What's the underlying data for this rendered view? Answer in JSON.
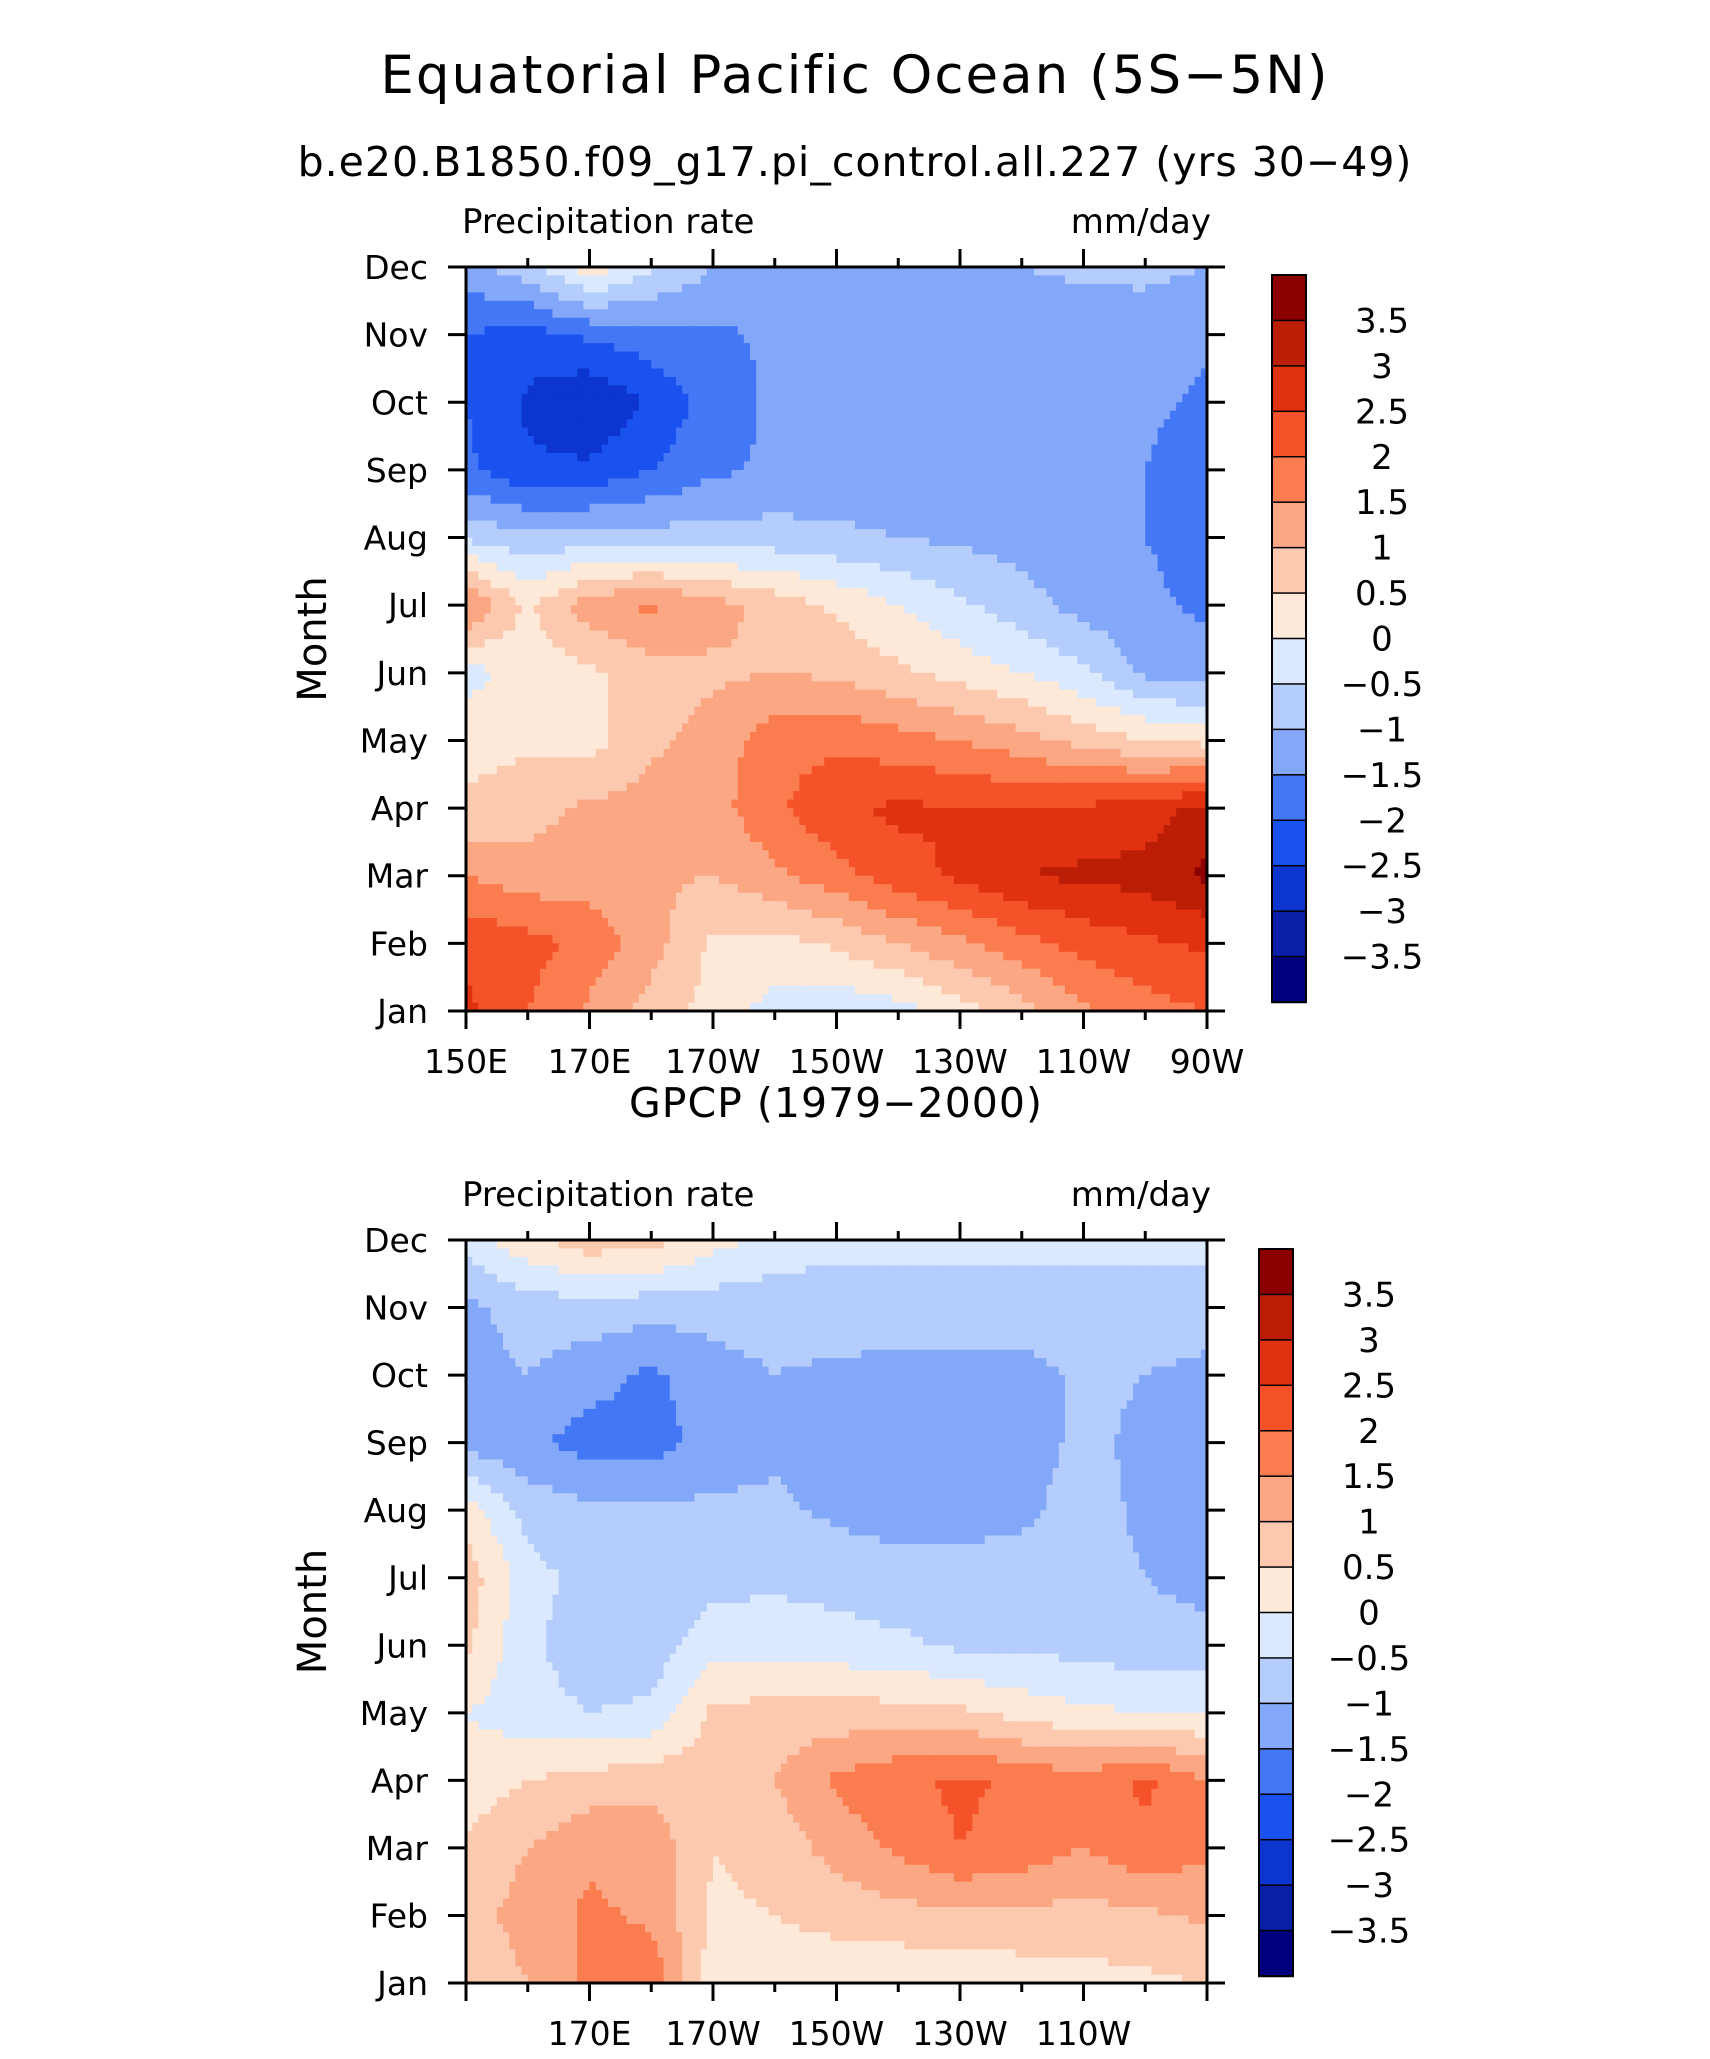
{
  "figure": {
    "title": "Equatorial Pacific Ocean (5S−5N)",
    "subtitle": "b.e20.B1850.f09_g17.pi_control.all.227 (yrs 30−49)"
  },
  "chart_data": [
    {
      "type": "heatmap",
      "title": "",
      "left_label": "Precipitation rate",
      "right_label": "mm/day",
      "xlabel": "",
      "ylabel": "Month",
      "x_range": [
        150,
        270
      ],
      "x_unit": "degrees east",
      "x_ticks": [
        150,
        170,
        190,
        210,
        230,
        250,
        270
      ],
      "x_tick_labels": [
        "150E",
        "170E",
        "170W",
        "150W",
        "130W",
        "110W",
        "90W"
      ],
      "y_tick_labels": [
        "Jan",
        "Feb",
        "Mar",
        "Apr",
        "May",
        "Jun",
        "Jul",
        "Aug",
        "Sep",
        "Oct",
        "Nov",
        "Dec"
      ],
      "colorbar": {
        "levels": [
          -3.5,
          -3,
          -2.5,
          -2,
          -1.5,
          -1,
          -0.5,
          0,
          0.5,
          1,
          1.5,
          2,
          2.5,
          3,
          3.5
        ],
        "labels": [
          "3.5",
          "3",
          "2.5",
          "2",
          "1.5",
          "1",
          "0.5",
          "0",
          "−0.5",
          "−1",
          "−1.5",
          "−2",
          "−2.5",
          "−3",
          "−3.5"
        ],
        "colors": [
          "#00007f",
          "#0a1fa8",
          "#0d36d1",
          "#1a52ef",
          "#4477f5",
          "#84a8f9",
          "#b4cdfc",
          "#dbe9fe",
          "#fee8d8",
          "#fdc9ae",
          "#fca784",
          "#fb7c4f",
          "#f5522a",
          "#e03210",
          "#bc1d05",
          "#8c0000"
        ]
      },
      "x": [
        150,
        160,
        170,
        180,
        190,
        200,
        210,
        220,
        230,
        240,
        250,
        260,
        270
      ],
      "months": [
        "Jan",
        "Feb",
        "Mar",
        "Apr",
        "May",
        "Jun",
        "Jul",
        "Aug",
        "Sep",
        "Oct",
        "Nov",
        "Dec"
      ],
      "z": [
        [
          2.6,
          2.0,
          1.4,
          0.8,
          0.3,
          -0.2,
          -0.4,
          -0.2,
          0.3,
          0.8,
          1.4,
          1.8,
          2.0
        ],
        [
          2.4,
          2.2,
          1.8,
          1.2,
          0.4,
          0.3,
          0.6,
          1.0,
          1.4,
          1.8,
          2.2,
          2.4,
          2.6
        ],
        [
          1.5,
          1.2,
          1.3,
          1.1,
          1.0,
          1.4,
          1.8,
          2.3,
          2.6,
          3.0,
          3.1,
          3.2,
          3.6
        ],
        [
          0.6,
          0.8,
          1.1,
          1.2,
          1.3,
          1.9,
          2.4,
          2.6,
          2.5,
          2.5,
          2.6,
          2.7,
          3.2
        ],
        [
          0.3,
          0.4,
          0.3,
          0.9,
          1.2,
          1.8,
          1.9,
          1.7,
          1.5,
          1.2,
          0.8,
          0.5,
          0.3
        ],
        [
          -0.2,
          0.2,
          0.4,
          0.8,
          0.9,
          1.0,
          0.9,
          0.6,
          0.3,
          0.0,
          -0.4,
          -1.1,
          -1.3
        ],
        [
          1.6,
          0.4,
          1.3,
          1.6,
          1.2,
          0.8,
          0.4,
          0.0,
          -0.4,
          -0.8,
          -1.2,
          -1.4,
          -1.6
        ],
        [
          -0.6,
          -0.9,
          -0.8,
          -0.8,
          -0.8,
          -0.8,
          -0.9,
          -1.0,
          -1.1,
          -1.2,
          -1.3,
          -1.5,
          -1.7
        ],
        [
          -1.9,
          -2.4,
          -2.4,
          -2.0,
          -1.6,
          -1.4,
          -1.3,
          -1.3,
          -1.3,
          -1.3,
          -1.4,
          -1.5,
          -1.8
        ],
        [
          -2.0,
          -2.6,
          -3.0,
          -2.4,
          -1.8,
          -1.4,
          -1.3,
          -1.3,
          -1.3,
          -1.3,
          -1.3,
          -1.4,
          -1.6
        ],
        [
          -2.0,
          -2.2,
          -1.9,
          -1.7,
          -1.6,
          -1.4,
          -1.3,
          -1.3,
          -1.3,
          -1.3,
          -1.3,
          -1.2,
          -1.4
        ],
        [
          -1.2,
          -0.7,
          0.3,
          -0.4,
          -1.0,
          -1.2,
          -1.2,
          -1.1,
          -1.1,
          -1.0,
          -0.9,
          -0.9,
          -1.0
        ]
      ]
    },
    {
      "type": "heatmap",
      "title": "GPCP (1979−2000)",
      "left_label": "Precipitation rate",
      "right_label": "mm/day",
      "xlabel": "",
      "ylabel": "Month",
      "x_range": [
        150,
        270
      ],
      "x_unit": "degrees east",
      "x_ticks": [
        170,
        190,
        210,
        230,
        250
      ],
      "x_tick_labels": [
        "170E",
        "170W",
        "150W",
        "130W",
        "110W"
      ],
      "y_tick_labels": [
        "Jan",
        "Feb",
        "Mar",
        "Apr",
        "May",
        "Jun",
        "Jul",
        "Aug",
        "Sep",
        "Oct",
        "Nov",
        "Dec"
      ],
      "colorbar": {
        "levels": [
          -3.5,
          -3,
          -2.5,
          -2,
          -1.5,
          -1,
          -0.5,
          0,
          0.5,
          1,
          1.5,
          2,
          2.5,
          3,
          3.5
        ],
        "labels": [
          "3.5",
          "3",
          "2.5",
          "2",
          "1.5",
          "1",
          "0.5",
          "0",
          "−0.5",
          "−1",
          "−1.5",
          "−2",
          "−2.5",
          "−3",
          "−3.5"
        ],
        "colors": [
          "#00007f",
          "#0a1fa8",
          "#0d36d1",
          "#1a52ef",
          "#4477f5",
          "#84a8f9",
          "#b4cdfc",
          "#dbe9fe",
          "#fee8d8",
          "#fdc9ae",
          "#fca784",
          "#fb7c4f",
          "#f5522a",
          "#e03210",
          "#bc1d05",
          "#8c0000"
        ]
      },
      "x": [
        150,
        160,
        170,
        180,
        190,
        200,
        210,
        220,
        230,
        240,
        250,
        260,
        270
      ],
      "months": [
        "Jan",
        "Feb",
        "Mar",
        "Apr",
        "May",
        "Jun",
        "Jul",
        "Aug",
        "Sep",
        "Oct",
        "Nov",
        "Dec"
      ],
      "z": [
        [
          0.6,
          1.0,
          1.6,
          1.9,
          0.2,
          0.2,
          0.1,
          0.1,
          0.1,
          0.2,
          0.3,
          0.4,
          0.5
        ],
        [
          0.8,
          1.2,
          1.6,
          1.4,
          0.4,
          0.5,
          0.7,
          0.8,
          0.9,
          0.9,
          0.8,
          0.9,
          1.1
        ],
        [
          0.6,
          1.0,
          1.4,
          1.3,
          0.5,
          0.7,
          1.2,
          1.6,
          2.0,
          1.8,
          1.5,
          1.9,
          1.6
        ],
        [
          0.2,
          0.5,
          0.7,
          0.8,
          0.8,
          1.0,
          1.6,
          1.9,
          2.1,
          1.9,
          1.7,
          2.1,
          1.5
        ],
        [
          0.0,
          -0.3,
          -0.5,
          -0.4,
          0.6,
          0.7,
          0.7,
          0.7,
          0.6,
          0.3,
          0.1,
          0.0,
          0.0
        ],
        [
          0.6,
          -0.4,
          -0.8,
          -0.8,
          -0.2,
          -0.2,
          -0.3,
          -0.4,
          -0.6,
          -0.6,
          -0.7,
          -0.8,
          -0.8
        ],
        [
          0.8,
          -0.3,
          -0.7,
          -0.7,
          -0.7,
          -0.6,
          -0.7,
          -0.8,
          -0.8,
          -0.8,
          -0.8,
          -1.0,
          -1.2
        ],
        [
          0.3,
          -0.7,
          -0.9,
          -0.9,
          -0.9,
          -0.9,
          -1.1,
          -1.2,
          -1.2,
          -1.1,
          -0.8,
          -1.1,
          -1.1
        ],
        [
          -1.2,
          -1.4,
          -1.7,
          -1.7,
          -1.3,
          -1.1,
          -1.3,
          -1.3,
          -1.3,
          -1.2,
          -0.9,
          -1.1,
          -1.2
        ],
        [
          -1.2,
          -1.0,
          -1.3,
          -1.6,
          -1.2,
          -1.0,
          -1.1,
          -1.2,
          -1.2,
          -1.2,
          -0.9,
          -1.0,
          -1.1
        ],
        [
          -1.1,
          -0.8,
          -0.7,
          -0.8,
          -0.8,
          -0.8,
          -0.7,
          -0.7,
          -0.7,
          -0.7,
          -0.7,
          -0.8,
          -0.8
        ],
        [
          -0.3,
          0.4,
          0.8,
          0.7,
          0.2,
          -0.2,
          -0.4,
          -0.4,
          -0.4,
          -0.4,
          -0.4,
          -0.3,
          -0.3
        ]
      ]
    }
  ]
}
